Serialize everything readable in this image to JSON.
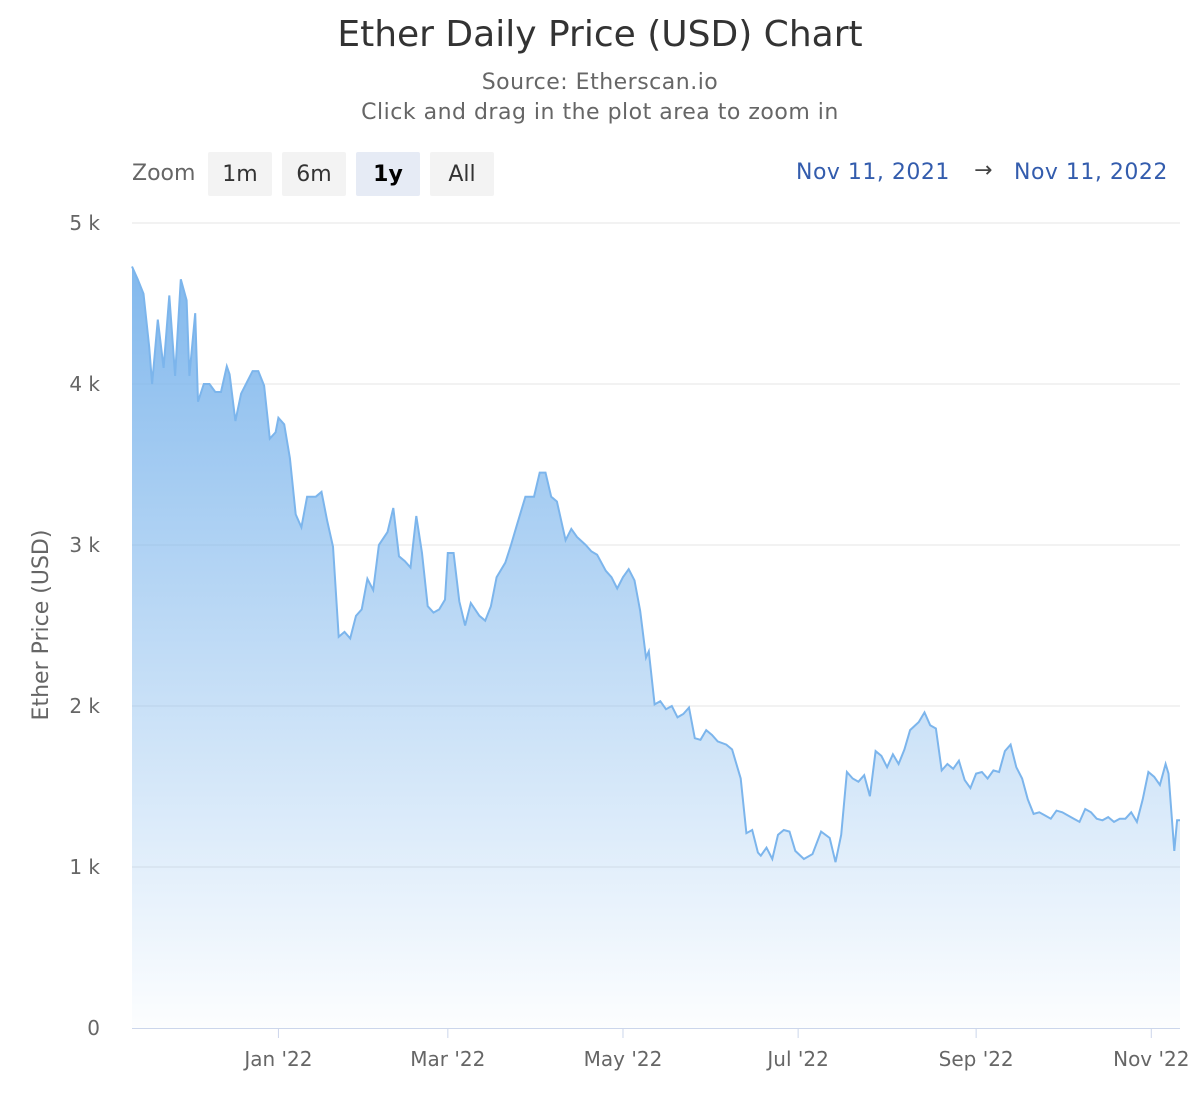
{
  "title": "Ether Daily Price (USD) Chart",
  "subtitle_source": "Source: Etherscan.io",
  "subtitle_hint": "Click and drag in the plot area to zoom in",
  "zoom": {
    "label": "Zoom",
    "buttons": [
      "1m",
      "6m",
      "1y",
      "All"
    ],
    "selected": "1y"
  },
  "range": {
    "from": "Nov 11, 2021",
    "arrow": "→",
    "to": "Nov 11, 2022"
  },
  "colors": {
    "line": "#7cb5ec",
    "fill_top": "#7cb5ec",
    "grid": "#e6e6e6",
    "range_text": "#335cad"
  },
  "chart_data": {
    "type": "area",
    "ylabel": "Ether Price (USD)",
    "ylim": [
      0,
      5000
    ],
    "yticks": [
      0,
      1000,
      2000,
      3000,
      4000,
      5000
    ],
    "ytick_labels": [
      "0",
      "1 k",
      "2 k",
      "3 k",
      "4 k",
      "5 k"
    ],
    "xlim": [
      "2021-11-11",
      "2022-11-11"
    ],
    "xticks": [
      "2022-01-01",
      "2022-03-01",
      "2022-05-01",
      "2022-07-01",
      "2022-09-01",
      "2022-11-01"
    ],
    "xtick_labels": [
      "Jan '22",
      "Mar '22",
      "May '22",
      "Jul '22",
      "Sep '22",
      "Nov '22"
    ],
    "grid": true,
    "legend": "none",
    "series": [
      {
        "x": [
          "2021-11-11",
          "2021-11-13",
          "2021-11-15",
          "2021-11-17",
          "2021-11-18",
          "2021-11-20",
          "2021-11-22",
          "2021-11-24",
          "2021-11-26",
          "2021-11-28",
          "2021-11-30",
          "2021-12-01",
          "2021-12-03",
          "2021-12-04",
          "2021-12-06",
          "2021-12-08",
          "2021-12-10",
          "2021-12-12",
          "2021-12-14",
          "2021-12-15",
          "2021-12-17",
          "2021-12-19",
          "2021-12-21",
          "2021-12-23",
          "2021-12-25",
          "2021-12-27",
          "2021-12-29",
          "2021-12-31",
          "2022-01-01",
          "2022-01-03",
          "2022-01-05",
          "2022-01-07",
          "2022-01-09",
          "2022-01-11",
          "2022-01-14",
          "2022-01-16",
          "2022-01-18",
          "2022-01-20",
          "2022-01-22",
          "2022-01-24",
          "2022-01-26",
          "2022-01-28",
          "2022-01-30",
          "2022-02-01",
          "2022-02-03",
          "2022-02-05",
          "2022-02-08",
          "2022-02-10",
          "2022-02-12",
          "2022-02-14",
          "2022-02-16",
          "2022-02-18",
          "2022-02-20",
          "2022-02-22",
          "2022-02-24",
          "2022-02-26",
          "2022-02-28",
          "2022-03-01",
          "2022-03-03",
          "2022-03-05",
          "2022-03-07",
          "2022-03-09",
          "2022-03-12",
          "2022-03-14",
          "2022-03-16",
          "2022-03-18",
          "2022-03-21",
          "2022-03-23",
          "2022-03-25",
          "2022-03-28",
          "2022-03-31",
          "2022-04-02",
          "2022-04-04",
          "2022-04-06",
          "2022-04-08",
          "2022-04-11",
          "2022-04-13",
          "2022-04-15",
          "2022-04-18",
          "2022-04-20",
          "2022-04-22",
          "2022-04-25",
          "2022-04-27",
          "2022-04-29",
          "2022-05-01",
          "2022-05-03",
          "2022-05-05",
          "2022-05-07",
          "2022-05-09",
          "2022-05-10",
          "2022-05-12",
          "2022-05-14",
          "2022-05-16",
          "2022-05-18",
          "2022-05-20",
          "2022-05-22",
          "2022-05-24",
          "2022-05-26",
          "2022-05-28",
          "2022-05-30",
          "2022-06-01",
          "2022-06-03",
          "2022-06-06",
          "2022-06-08",
          "2022-06-11",
          "2022-06-13",
          "2022-06-15",
          "2022-06-17",
          "2022-06-18",
          "2022-06-20",
          "2022-06-22",
          "2022-06-24",
          "2022-06-26",
          "2022-06-28",
          "2022-06-30",
          "2022-07-03",
          "2022-07-06",
          "2022-07-09",
          "2022-07-12",
          "2022-07-14",
          "2022-07-16",
          "2022-07-18",
          "2022-07-20",
          "2022-07-22",
          "2022-07-24",
          "2022-07-26",
          "2022-07-28",
          "2022-07-30",
          "2022-08-01",
          "2022-08-03",
          "2022-08-05",
          "2022-08-07",
          "2022-08-09",
          "2022-08-12",
          "2022-08-14",
          "2022-08-16",
          "2022-08-18",
          "2022-08-20",
          "2022-08-22",
          "2022-08-24",
          "2022-08-26",
          "2022-08-28",
          "2022-08-30",
          "2022-09-01",
          "2022-09-03",
          "2022-09-05",
          "2022-09-07",
          "2022-09-09",
          "2022-09-11",
          "2022-09-13",
          "2022-09-15",
          "2022-09-17",
          "2022-09-19",
          "2022-09-21",
          "2022-09-23",
          "2022-09-25",
          "2022-09-27",
          "2022-09-29",
          "2022-10-01",
          "2022-10-03",
          "2022-10-05",
          "2022-10-07",
          "2022-10-09",
          "2022-10-11",
          "2022-10-13",
          "2022-10-15",
          "2022-10-17",
          "2022-10-19",
          "2022-10-21",
          "2022-10-23",
          "2022-10-25",
          "2022-10-27",
          "2022-10-29",
          "2022-10-31",
          "2022-11-02",
          "2022-11-04",
          "2022-11-06",
          "2022-11-07",
          "2022-11-09",
          "2022-11-10",
          "2022-11-11"
        ],
        "values": [
          4730,
          4650,
          4560,
          4230,
          4000,
          4400,
          4100,
          4550,
          4050,
          4650,
          4520,
          4050,
          4440,
          3890,
          4000,
          4000,
          3950,
          3950,
          4110,
          4060,
          3770,
          3940,
          4010,
          4080,
          4080,
          3990,
          3660,
          3700,
          3790,
          3750,
          3540,
          3190,
          3110,
          3300,
          3300,
          3330,
          3150,
          2990,
          2430,
          2460,
          2420,
          2560,
          2600,
          2790,
          2720,
          3000,
          3080,
          3230,
          2930,
          2900,
          2860,
          3180,
          2950,
          2620,
          2580,
          2600,
          2660,
          2950,
          2950,
          2650,
          2500,
          2640,
          2560,
          2530,
          2620,
          2800,
          2890,
          3000,
          3120,
          3300,
          3300,
          3450,
          3450,
          3300,
          3270,
          3030,
          3100,
          3050,
          3000,
          2960,
          2940,
          2840,
          2800,
          2730,
          2800,
          2850,
          2780,
          2590,
          2300,
          2340,
          2010,
          2030,
          1980,
          2000,
          1930,
          1950,
          1990,
          1800,
          1790,
          1850,
          1820,
          1780,
          1760,
          1730,
          1550,
          1210,
          1230,
          1090,
          1070,
          1120,
          1050,
          1200,
          1230,
          1220,
          1100,
          1050,
          1080,
          1220,
          1180,
          1030,
          1200,
          1590,
          1550,
          1530,
          1570,
          1440,
          1720,
          1690,
          1620,
          1700,
          1640,
          1730,
          1850,
          1900,
          1960,
          1880,
          1860,
          1600,
          1640,
          1610,
          1660,
          1540,
          1490,
          1580,
          1590,
          1550,
          1600,
          1590,
          1720,
          1760,
          1620,
          1550,
          1420,
          1330,
          1340,
          1320,
          1300,
          1350,
          1340,
          1320,
          1300,
          1280,
          1360,
          1340,
          1300,
          1290,
          1310,
          1280,
          1300,
          1300,
          1340,
          1280,
          1420,
          1590,
          1560,
          1510,
          1640,
          1580,
          1100,
          1290,
          1290
        ],
        "fill": "gradient"
      }
    ]
  }
}
